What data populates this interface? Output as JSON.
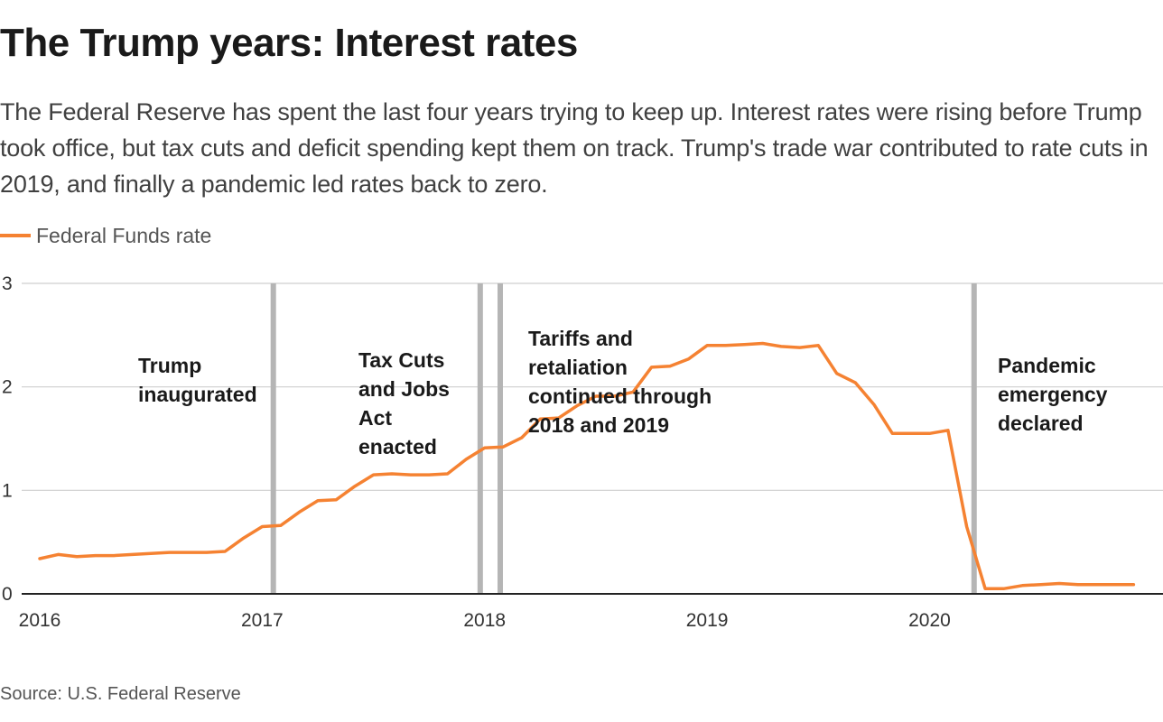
{
  "header": {
    "title": "The Trump years: Interest rates",
    "subtitle": "The Federal Reserve has spent the last four years trying to keep up. Interest rates were rising before Trump took office, but tax cuts and deficit spending kept them on track. Trump's trade war contributed to rate cuts in 2019, and finally a pandemic led rates back to zero."
  },
  "legend": {
    "label": "Federal Funds rate",
    "color": "#f58232"
  },
  "footer": {
    "source": "Source: U.S. Federal Reserve"
  },
  "chart_data": {
    "type": "line",
    "title": "The Trump years: Interest rates",
    "xlabel": "",
    "ylabel": "",
    "xlim": [
      2016.0,
      2020.96
    ],
    "ylim": [
      0,
      3
    ],
    "grid": true,
    "legend_position": "top-left",
    "y_ticks": [
      0,
      1,
      2,
      3
    ],
    "x_ticks": [
      2016,
      2017,
      2018,
      2019,
      2020
    ],
    "x_tick_labels": [
      "2016",
      "2017",
      "2018",
      "2019",
      "2020"
    ],
    "series": [
      {
        "name": "Federal Funds rate",
        "color": "#f58232",
        "x": [
          2016.0,
          2016.083,
          2016.167,
          2016.25,
          2016.333,
          2016.417,
          2016.5,
          2016.583,
          2016.667,
          2016.75,
          2016.833,
          2016.917,
          2017.0,
          2017.083,
          2017.167,
          2017.25,
          2017.333,
          2017.417,
          2017.5,
          2017.583,
          2017.667,
          2017.75,
          2017.833,
          2017.917,
          2018.0,
          2018.083,
          2018.167,
          2018.25,
          2018.333,
          2018.417,
          2018.5,
          2018.583,
          2018.667,
          2018.75,
          2018.833,
          2018.917,
          2019.0,
          2019.083,
          2019.167,
          2019.25,
          2019.333,
          2019.417,
          2019.5,
          2019.583,
          2019.667,
          2019.75,
          2019.833,
          2019.917,
          2020.0,
          2020.083,
          2020.167,
          2020.25,
          2020.333,
          2020.417,
          2020.5,
          2020.583,
          2020.667,
          2020.75,
          2020.833,
          2020.917
        ],
        "values": [
          0.34,
          0.38,
          0.36,
          0.37,
          0.37,
          0.38,
          0.39,
          0.4,
          0.4,
          0.4,
          0.41,
          0.54,
          0.65,
          0.66,
          0.79,
          0.9,
          0.91,
          1.04,
          1.15,
          1.16,
          1.15,
          1.15,
          1.16,
          1.3,
          1.41,
          1.42,
          1.51,
          1.69,
          1.7,
          1.82,
          1.91,
          1.91,
          1.95,
          2.19,
          2.2,
          2.27,
          2.4,
          2.4,
          2.41,
          2.42,
          2.39,
          2.38,
          2.4,
          2.13,
          2.04,
          1.83,
          1.55,
          1.55,
          1.55,
          1.58,
          0.65,
          0.05,
          0.05,
          0.08,
          0.09,
          0.1,
          0.09,
          0.09,
          0.09,
          0.09
        ]
      }
    ],
    "annotations": [
      {
        "x": 2017.05,
        "lines": [
          "Trump",
          "inaugurated"
        ]
      },
      {
        "x": 2017.98,
        "lines": [
          "Tax Cuts",
          "and Jobs",
          "Act",
          "enacted"
        ]
      },
      {
        "x": 2018.07,
        "lines": [
          "Tariffs and",
          "retaliation",
          "continued through",
          "2018 and 2019"
        ]
      },
      {
        "x": 2020.2,
        "lines": [
          "Pandemic",
          "emergency",
          "declared"
        ]
      }
    ]
  }
}
